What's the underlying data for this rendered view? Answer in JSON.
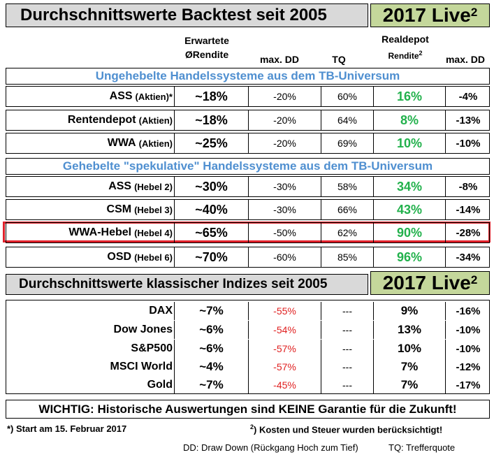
{
  "header_backtest": "Durchschnittswerte Backtest seit 2005",
  "live_label": "2017 Live",
  "live_sup": "2",
  "columns": {
    "expected_line1": "Erwartete",
    "expected_line2": "ØRendite",
    "max_dd": "max. DD",
    "tq": "TQ",
    "realdepot_line1": "Realdepot",
    "realdepot_line2": "Rendite",
    "realdepot_sup": "2",
    "max_dd_live": "max. DD"
  },
  "section_unleveraged": "Ungehebelte Handelssysteme aus dem TB-Universum",
  "section_leveraged": "Gehebelte \"spekulative\" Handelssysteme aus dem TB-Universum",
  "unleveraged": [
    {
      "name": "ASS",
      "sub": "(Aktien)*",
      "ret": "~18%",
      "dd": "-20%",
      "tq": "60%",
      "real": "16%",
      "mdd": "-4%"
    },
    {
      "name": "Rentendepot",
      "sub": "(Aktien)",
      "ret": "~18%",
      "dd": "-20%",
      "tq": "64%",
      "real": "8%",
      "mdd": "-13%"
    },
    {
      "name": "WWA",
      "sub": "(Aktien)",
      "ret": "~25%",
      "dd": "-20%",
      "tq": "69%",
      "real": "10%",
      "mdd": "-10%"
    }
  ],
  "leveraged": [
    {
      "name": "ASS",
      "sub": "(Hebel 2)",
      "ret": "~30%",
      "dd": "-30%",
      "tq": "58%",
      "real": "34%",
      "mdd": "-8%"
    },
    {
      "name": "CSM",
      "sub": "(Hebel 3)",
      "ret": "~40%",
      "dd": "-30%",
      "tq": "66%",
      "real": "43%",
      "mdd": "-14%"
    },
    {
      "name": "WWA-Hebel",
      "sub": "(Hebel 4)",
      "ret": "~65%",
      "dd": "-50%",
      "tq": "62%",
      "real": "90%",
      "mdd": "-28%"
    },
    {
      "name": "OSD",
      "sub": "(Hebel 6)",
      "ret": "~70%",
      "dd": "-60%",
      "tq": "85%",
      "real": "96%",
      "mdd": "-34%"
    }
  ],
  "header_indices": "Durchschnittswerte klassischer Indizes seit 2005",
  "indices": [
    {
      "name": "DAX",
      "ret": "~7%",
      "dd": "-55%",
      "tq": "---",
      "real": "9%",
      "mdd": "-16%"
    },
    {
      "name": "Dow Jones",
      "ret": "~6%",
      "dd": "-54%",
      "tq": "---",
      "real": "13%",
      "mdd": "-10%"
    },
    {
      "name": "S&P500",
      "ret": "~6%",
      "dd": "-57%",
      "tq": "---",
      "real": "10%",
      "mdd": "-10%"
    },
    {
      "name": "MSCI World",
      "ret": "~4%",
      "dd": "-57%",
      "tq": "---",
      "real": "7%",
      "mdd": "-12%"
    },
    {
      "name": "Gold",
      "ret": "~7%",
      "dd": "-45%",
      "tq": "---",
      "real": "7%",
      "mdd": "-17%"
    }
  ],
  "warning": "WICHTIG: Historische Auswertungen sind KEINE Garantie für die Zukunft!",
  "footnote_start": "*) Start am 15. Februar 2017",
  "footnote_costs_sup": "2",
  "footnote_costs": ") Kosten und Steuer wurden berücksichtigt!",
  "legend_dd": "DD: Draw Down (Rückgang Hoch zum Tief)",
  "legend_tq": "TQ: Trefferquote",
  "colors": {
    "header_gray": "#d9d9d9",
    "live_green_bg": "#c4d79b",
    "section_blue": "#4f8fd0",
    "value_green": "#22b14c",
    "value_red": "#e02020",
    "highlight_red": "#e0202a"
  }
}
